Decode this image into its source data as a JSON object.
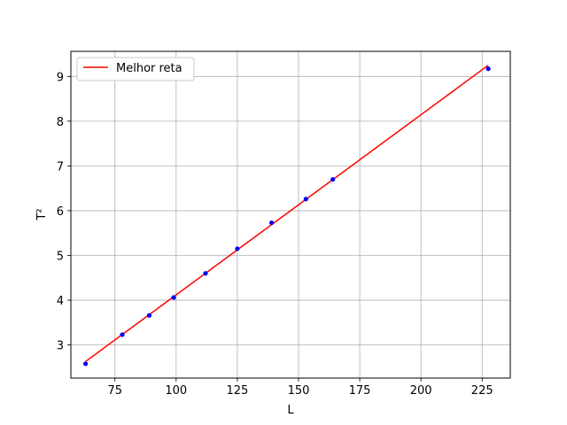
{
  "chart_data": {
    "type": "scatter",
    "xlabel": "L",
    "ylabel": "T²",
    "xlim": [
      57,
      236.5
    ],
    "ylim": [
      2.26,
      9.56
    ],
    "xticks": [
      75,
      100,
      125,
      150,
      175,
      200,
      225
    ],
    "yticks": [
      3,
      4,
      5,
      6,
      7,
      8,
      9
    ],
    "grid": true,
    "legend": {
      "position": "top-left",
      "entries": [
        "Melhor reta"
      ]
    },
    "series": [
      {
        "kind": "points",
        "color": "#0000ff",
        "x": [
          63,
          78,
          89,
          99,
          112,
          125,
          139,
          153,
          164,
          227.5
        ],
        "y": [
          2.58,
          3.23,
          3.66,
          4.06,
          4.6,
          5.15,
          5.73,
          6.26,
          6.7,
          9.17
        ]
      },
      {
        "kind": "line",
        "name": "Melhor reta",
        "color": "#ff0000",
        "x": [
          63,
          227.5
        ],
        "y": [
          2.63,
          9.25
        ]
      }
    ]
  }
}
